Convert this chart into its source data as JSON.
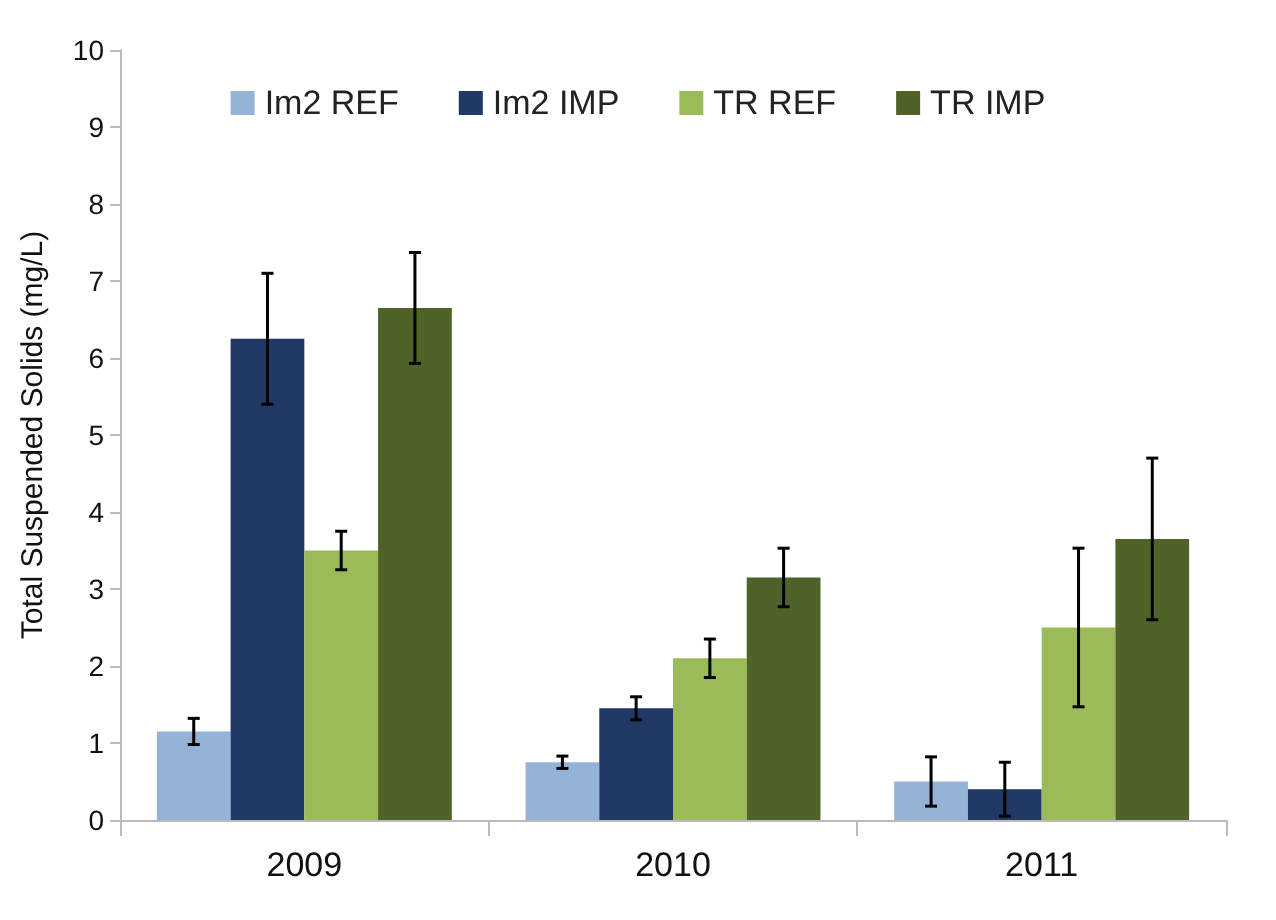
{
  "chart_data": {
    "type": "bar",
    "ylabel": "Total Suspended Solids (mg/L)",
    "categories": [
      "2009",
      "2010",
      "2011"
    ],
    "series": [
      {
        "name": "Im2 REF",
        "color": "#95b3d7",
        "values": [
          1.15,
          0.75,
          0.5
        ],
        "errors": [
          0.17,
          0.08,
          0.32
        ]
      },
      {
        "name": "Im2 IMP",
        "color": "#1f3864",
        "values": [
          6.25,
          1.45,
          0.4
        ],
        "errors": [
          0.85,
          0.15,
          0.35
        ]
      },
      {
        "name": "TR REF",
        "color": "#9bbb59",
        "values": [
          3.5,
          2.1,
          2.5
        ],
        "errors": [
          0.25,
          0.25,
          1.03
        ]
      },
      {
        "name": "TR IMP",
        "color": "#4f6228",
        "values": [
          6.65,
          3.15,
          3.65
        ],
        "errors": [
          0.72,
          0.38,
          1.05
        ]
      }
    ],
    "ylim": [
      0,
      10
    ],
    "yticks": [
      0,
      1,
      2,
      3,
      4,
      5,
      6,
      7,
      8,
      9,
      10
    ],
    "grid": false,
    "legend": "top"
  }
}
